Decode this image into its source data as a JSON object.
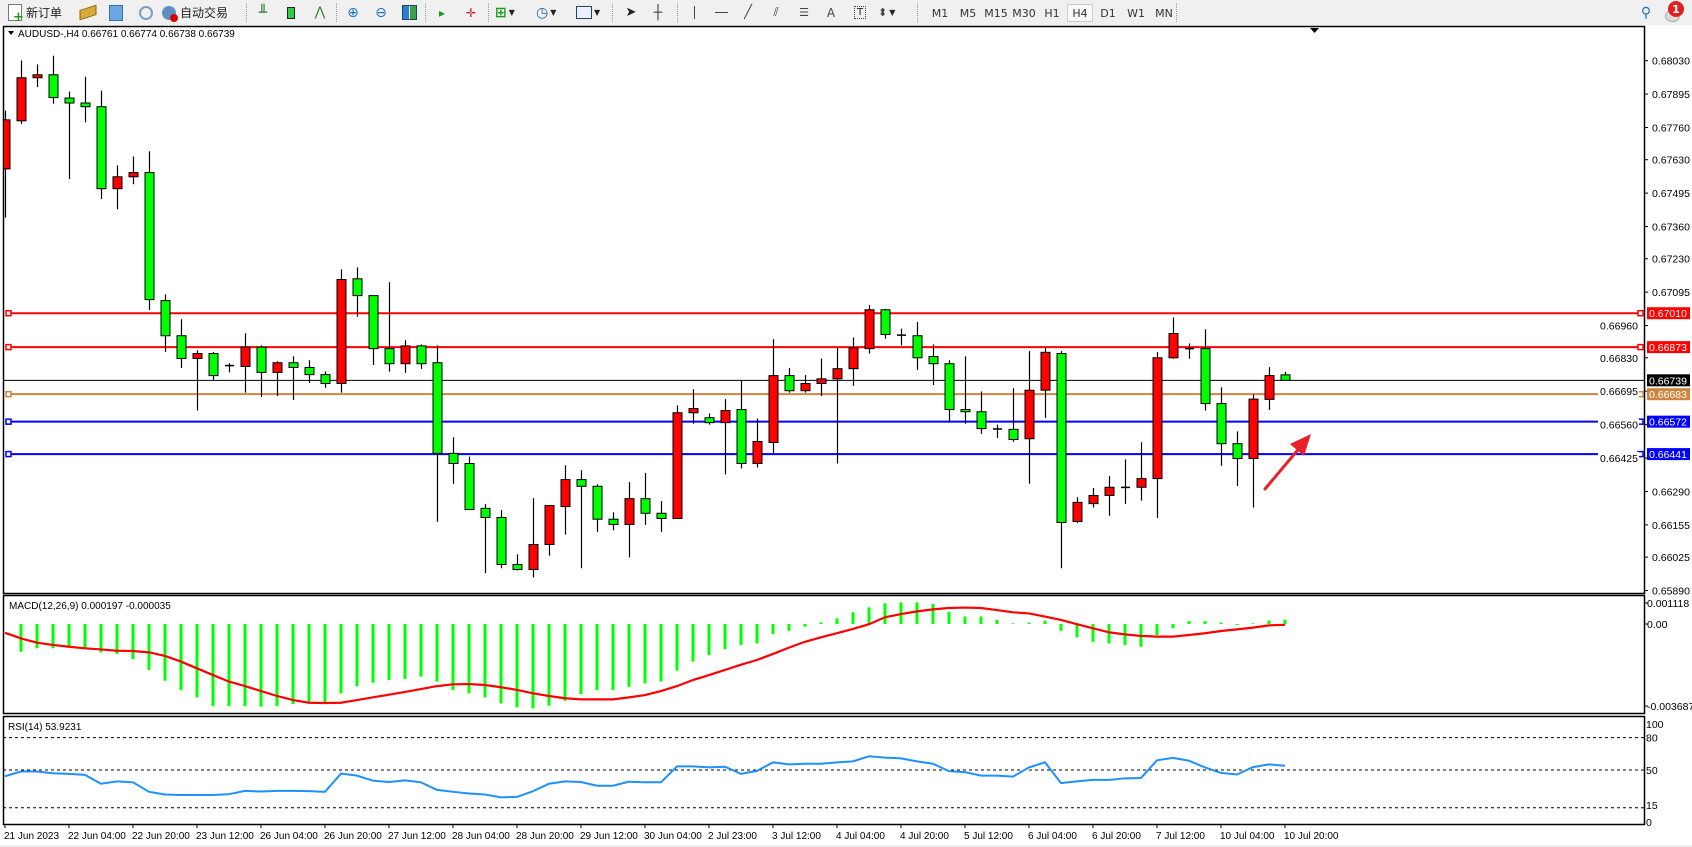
{
  "toolbar": {
    "new_order_label": "新订单",
    "auto_trading_label": "自动交易",
    "timeframes": [
      "M1",
      "M5",
      "M15",
      "M30",
      "H1",
      "H4",
      "D1",
      "W1",
      "MN"
    ],
    "active_timeframe": "H4",
    "text_tool_label": "A",
    "notification_count": "1"
  },
  "chart_data": {
    "type": "candlestick",
    "legend": "AUDUSD-,H4  0.66761 0.66774 0.66738 0.66739",
    "ylim": [
      0.6588,
      0.6817
    ],
    "price_ticks": [
      "0.68030",
      "0.67895",
      "0.67760",
      "0.67630",
      "0.67495",
      "0.67360",
      "0.67230",
      "0.67095",
      "0.66960",
      "0.66830",
      "0.66695",
      "0.66560",
      "0.66425",
      "0.66290",
      "0.66155",
      "0.66025",
      "0.65890"
    ],
    "time_labels": [
      "21 Jun 2023",
      "22 Jun 04:00",
      "22 Jun 20:00",
      "23 Jun 12:00",
      "26 Jun 04:00",
      "26 Jun 20:00",
      "27 Jun 12:00",
      "28 Jun 04:00",
      "28 Jun 20:00",
      "29 Jun 12:00",
      "30 Jun 04:00",
      "2 Jul 23:00",
      "3 Jul 12:00",
      "4 Jul 04:00",
      "4 Jul 20:00",
      "5 Jul 12:00",
      "6 Jul 04:00",
      "6 Jul 20:00",
      "7 Jul 12:00",
      "10 Jul 04:00",
      "10 Jul 20:00"
    ],
    "colors": {
      "bull": "#ff0000",
      "bear": "#00ff00",
      "outline": "#000000"
    },
    "candles_ohlc": [
      [
        0.67593,
        0.67828,
        0.67396,
        0.67791
      ],
      [
        0.67787,
        0.68031,
        0.67774,
        0.67961
      ],
      [
        0.67961,
        0.68015,
        0.67923,
        0.67973
      ],
      [
        0.67973,
        0.6805,
        0.67856,
        0.67881
      ],
      [
        0.67879,
        0.67905,
        0.67552,
        0.67859
      ],
      [
        0.67859,
        0.67965,
        0.67781,
        0.67844
      ],
      [
        0.67844,
        0.67909,
        0.67471,
        0.67513
      ],
      [
        0.67513,
        0.67607,
        0.6743,
        0.67561
      ],
      [
        0.67561,
        0.67643,
        0.67531,
        0.67578
      ],
      [
        0.67578,
        0.67664,
        0.67023,
        0.67065
      ],
      [
        0.67061,
        0.67086,
        0.66854,
        0.66919
      ],
      [
        0.66919,
        0.66986,
        0.66789,
        0.66827
      ],
      [
        0.66827,
        0.6686,
        0.66617,
        0.66847
      ],
      [
        0.66847,
        0.66854,
        0.66741,
        0.66758
      ],
      [
        0.66802,
        0.66808,
        0.66771,
        0.66795
      ],
      [
        0.66795,
        0.66929,
        0.66689,
        0.66873
      ],
      [
        0.66873,
        0.6688,
        0.66672,
        0.66771
      ],
      [
        0.66771,
        0.66816,
        0.66676,
        0.6681
      ],
      [
        0.6681,
        0.66836,
        0.6666,
        0.66791
      ],
      [
        0.66791,
        0.6682,
        0.66728,
        0.66762
      ],
      [
        0.66762,
        0.66775,
        0.66709,
        0.66726
      ],
      [
        0.66726,
        0.67187,
        0.66689,
        0.67146
      ],
      [
        0.67149,
        0.67195,
        0.66996,
        0.67081
      ],
      [
        0.67081,
        0.67081,
        0.66801,
        0.66867
      ],
      [
        0.66867,
        0.67135,
        0.66774,
        0.66806
      ],
      [
        0.66806,
        0.66901,
        0.66769,
        0.66878
      ],
      [
        0.66878,
        0.66884,
        0.66785,
        0.66806
      ],
      [
        0.6681,
        0.6688,
        0.66168,
        0.66444
      ],
      [
        0.66444,
        0.66509,
        0.66321,
        0.66403
      ],
      [
        0.66403,
        0.66431,
        0.66217,
        0.66217
      ],
      [
        0.66222,
        0.66239,
        0.6596,
        0.66185
      ],
      [
        0.66185,
        0.66215,
        0.6598,
        0.65995
      ],
      [
        0.65995,
        0.66036,
        0.65971,
        0.65975
      ],
      [
        0.65975,
        0.66263,
        0.65943,
        0.66076
      ],
      [
        0.66076,
        0.66233,
        0.66031,
        0.66233
      ],
      [
        0.66229,
        0.66396,
        0.66116,
        0.66338
      ],
      [
        0.66338,
        0.66376,
        0.6598,
        0.66311
      ],
      [
        0.66311,
        0.66319,
        0.66127,
        0.66178
      ],
      [
        0.66178,
        0.66206,
        0.66133,
        0.66157
      ],
      [
        0.66157,
        0.66328,
        0.66024,
        0.66261
      ],
      [
        0.66261,
        0.66365,
        0.66155,
        0.66202
      ],
      [
        0.66202,
        0.66251,
        0.66127,
        0.66181
      ],
      [
        0.66181,
        0.66638,
        0.66181,
        0.66608
      ],
      [
        0.66608,
        0.66703,
        0.66564,
        0.66625
      ],
      [
        0.66588,
        0.66605,
        0.6656,
        0.66568
      ],
      [
        0.66568,
        0.66663,
        0.66359,
        0.66617
      ],
      [
        0.66621,
        0.66738,
        0.66383,
        0.66403
      ],
      [
        0.66403,
        0.66585,
        0.66387,
        0.66492
      ],
      [
        0.66488,
        0.66905,
        0.66445,
        0.66758
      ],
      [
        0.66758,
        0.66789,
        0.66689,
        0.66697
      ],
      [
        0.66697,
        0.6676,
        0.66689,
        0.66726
      ],
      [
        0.66726,
        0.66827,
        0.66676,
        0.66745
      ],
      [
        0.66745,
        0.6687,
        0.66403,
        0.66786
      ],
      [
        0.66786,
        0.66912,
        0.66717,
        0.6687
      ],
      [
        0.66867,
        0.67043,
        0.66847,
        0.67024
      ],
      [
        0.67024,
        0.67028,
        0.66907,
        0.66924
      ],
      [
        0.66924,
        0.66948,
        0.6688,
        0.66919
      ],
      [
        0.66919,
        0.66975,
        0.66781,
        0.6683
      ],
      [
        0.66835,
        0.66884,
        0.6672,
        0.66806
      ],
      [
        0.66806,
        0.6682,
        0.66568,
        0.66621
      ],
      [
        0.66621,
        0.66836,
        0.66564,
        0.66612
      ],
      [
        0.66612,
        0.66694,
        0.66523,
        0.66544
      ],
      [
        0.66544,
        0.6656,
        0.66506,
        0.66541
      ],
      [
        0.66541,
        0.66707,
        0.66491,
        0.665
      ],
      [
        0.66503,
        0.66857,
        0.66321,
        0.66699
      ],
      [
        0.66699,
        0.66869,
        0.66587,
        0.66852
      ],
      [
        0.66847,
        0.66857,
        0.6598,
        0.66165
      ],
      [
        0.66169,
        0.66267,
        0.66162,
        0.66246
      ],
      [
        0.66241,
        0.66304,
        0.66225,
        0.66274
      ],
      [
        0.66274,
        0.66352,
        0.66192,
        0.66307
      ],
      [
        0.66305,
        0.6642,
        0.6624,
        0.66308
      ],
      [
        0.66307,
        0.66489,
        0.66253,
        0.66342
      ],
      [
        0.66342,
        0.66853,
        0.66183,
        0.6683
      ],
      [
        0.6683,
        0.66993,
        0.66826,
        0.66928
      ],
      [
        0.66868,
        0.66888,
        0.66826,
        0.66866
      ],
      [
        0.66867,
        0.66945,
        0.66617,
        0.66645
      ],
      [
        0.66645,
        0.66711,
        0.66394,
        0.66483
      ],
      [
        0.66483,
        0.66533,
        0.66312,
        0.66423
      ],
      [
        0.66423,
        0.66682,
        0.66225,
        0.66663
      ],
      [
        0.66662,
        0.66792,
        0.66619,
        0.66758
      ],
      [
        0.66761,
        0.66774,
        0.66738,
        0.66739
      ]
    ],
    "current_price": {
      "label": "0.66739",
      "value": 0.66739,
      "color": "#000000"
    },
    "hlines": [
      {
        "label": "0.67010",
        "value": 0.6701,
        "color": "#ff0000"
      },
      {
        "label": "0.66873",
        "value": 0.66873,
        "color": "#ff0000"
      },
      {
        "label": "0.66683",
        "value": 0.66683,
        "color": "#cd853f"
      },
      {
        "label": "0.66572",
        "value": 0.66572,
        "color": "#0000ff"
      },
      {
        "label": "0.66441",
        "value": 0.66441,
        "color": "#0000ff"
      }
    ],
    "annotation": {
      "type": "arrow",
      "color": "#e8202a",
      "direction": "up-right"
    },
    "macd": {
      "legend": "MACD(12,26,9) 0.000197 -0.000035",
      "axis_labels": [
        {
          "label": "0.001118",
          "value": 0.001118
        },
        {
          "label": "0.00",
          "value": 0
        },
        {
          "label": "-0.003687",
          "value": -0.003687
        }
      ],
      "ylim": [
        -0.003687,
        0.001118
      ],
      "histogram_color": "#00ff00",
      "signal_color": "#ff0000",
      "histogram": [
        -0.00123,
        -0.00123,
        -0.00108,
        -0.00108,
        -0.00101,
        -0.00111,
        -0.00126,
        -0.00133,
        -0.00156,
        -0.00204,
        -0.00252,
        -0.00293,
        -0.00326,
        -0.00364,
        -0.00364,
        -0.00364,
        -0.00367,
        -0.00364,
        -0.00356,
        -0.0035,
        -0.0035,
        -0.00308,
        -0.00276,
        -0.00261,
        -0.00249,
        -0.00244,
        -0.00234,
        -0.00256,
        -0.00293,
        -0.00308,
        -0.00326,
        -0.00353,
        -0.0037,
        -0.00375,
        -0.00363,
        -0.00341,
        -0.00311,
        -0.00293,
        -0.00293,
        -0.00279,
        -0.00264,
        -0.00256,
        -0.00207,
        -0.00167,
        -0.00138,
        -0.00111,
        -0.00093,
        -0.00086,
        -0.00044,
        -0.0003,
        -0.00012,
        7e-05,
        0.00025,
        0.00052,
        0.00074,
        0.00092,
        0.00096,
        0.00096,
        0.00089,
        0.00055,
        0.00033,
        0.00033,
        0.00018,
        3e-05,
        6e-05,
        0.00015,
        -0.0003,
        -0.00059,
        -0.00079,
        -0.00086,
        -0.00093,
        -0.00101,
        -0.00049,
        -0.00019,
        0.00013,
        0.00013,
        6e-05,
        -4e-05,
        3e-05,
        0.00015,
        0.000197
      ],
      "signal": [
        -0.00039,
        -0.00064,
        -0.00083,
        -0.00093,
        -0.00101,
        -0.00108,
        -0.00113,
        -0.00119,
        -0.0012,
        -0.00126,
        -0.00142,
        -0.00167,
        -0.00197,
        -0.00227,
        -0.00256,
        -0.00276,
        -0.00298,
        -0.0032,
        -0.00338,
        -0.0035,
        -0.00351,
        -0.0035,
        -0.00338,
        -0.00326,
        -0.00314,
        -0.00302,
        -0.00289,
        -0.00276,
        -0.00268,
        -0.00267,
        -0.00271,
        -0.00281,
        -0.00293,
        -0.00308,
        -0.0032,
        -0.0033,
        -0.00335,
        -0.00335,
        -0.00335,
        -0.00326,
        -0.00316,
        -0.00298,
        -0.00276,
        -0.00249,
        -0.00227,
        -0.00204,
        -0.00181,
        -0.0016,
        -0.00133,
        -0.00105,
        -0.00079,
        -0.00059,
        -0.00041,
        -0.00022,
        -1e-05,
        0.0003,
        0.00044,
        0.00056,
        0.00065,
        0.00071,
        0.00073,
        0.00071,
        0.00062,
        0.00052,
        0.00047,
        0.00033,
        0.00018,
        -1e-05,
        -0.00019,
        -0.00037,
        -0.00046,
        -0.00053,
        -0.00056,
        -0.00056,
        -0.00049,
        -0.00041,
        -0.00031,
        -0.00024,
        -0.00016,
        -6e-05,
        -3.5e-05
      ]
    },
    "rsi": {
      "legend": "RSI(14) 53.9231",
      "axis_labels": [
        {
          "label": "100",
          "value": 100
        },
        {
          "label": "80",
          "value": 80
        },
        {
          "label": "50",
          "value": 50
        },
        {
          "label": "15",
          "value": 15
        },
        {
          "label": "0",
          "value": 0
        }
      ],
      "levels": [
        80,
        50,
        15
      ],
      "ylim": [
        0,
        100
      ],
      "color": "#1e90ff",
      "values": [
        44.2,
        48.6,
        48.6,
        47.0,
        46.4,
        45.5,
        37.3,
        39.5,
        38.6,
        29.8,
        27.3,
        26.9,
        26.9,
        26.9,
        27.6,
        30.7,
        30.1,
        30.7,
        30.7,
        30.4,
        29.8,
        46.7,
        44.8,
        40.1,
        38.9,
        40.4,
        38.6,
        31.6,
        29.8,
        28.2,
        27.3,
        24.7,
        25.1,
        30.4,
        37.3,
        39.5,
        38.9,
        35.4,
        35.4,
        39.2,
        38.6,
        38.6,
        53.3,
        53.3,
        52.4,
        53.0,
        46.4,
        49.2,
        57.1,
        55.2,
        55.8,
        55.8,
        57.1,
        58.0,
        62.7,
        61.5,
        60.8,
        58.0,
        55.8,
        48.9,
        48.0,
        44.8,
        44.8,
        43.9,
        52.4,
        57.1,
        37.9,
        39.5,
        40.8,
        40.8,
        42.3,
        42.6,
        59.0,
        61.2,
        58.6,
        52.4,
        47.3,
        45.8,
        52.7,
        55.2,
        53.9
      ]
    }
  }
}
